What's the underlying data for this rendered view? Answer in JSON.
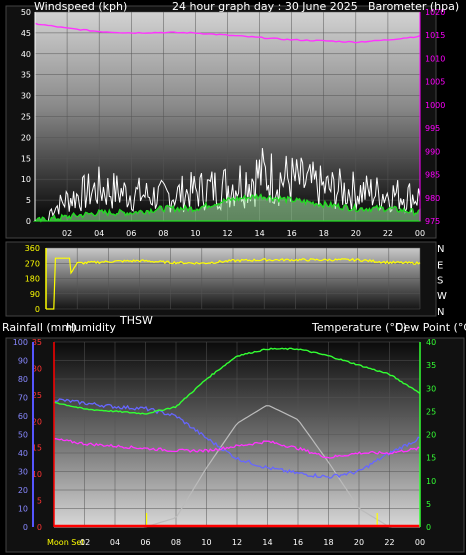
{
  "header": {
    "left": "Windspeed (kph)",
    "center": "24 hour graph day : 30 June 2025",
    "right": "Barometer (hpa)"
  },
  "panel1": {
    "left_ticks": [
      "0",
      "5",
      "10",
      "15",
      "20",
      "25",
      "30",
      "35",
      "40",
      "45",
      "50"
    ],
    "right_ticks": [
      "975",
      "980",
      "985",
      "990",
      "995",
      "1000",
      "1005",
      "1010",
      "1015",
      "1020"
    ],
    "x_ticks": [
      "02",
      "04",
      "06",
      "08",
      "10",
      "12",
      "14",
      "16",
      "18",
      "20",
      "22",
      "00"
    ]
  },
  "panel2": {
    "left_ticks": [
      "0",
      "90",
      "180",
      "270",
      "360"
    ],
    "right_labels": [
      "N",
      "W",
      "S",
      "E",
      "N"
    ],
    "caption": "THSW"
  },
  "panel3": {
    "label_left": "Rainfall (mm)",
    "label_humidity": "Humidity",
    "label_temp": "Temperature (°C)",
    "label_dew": "Dew Point (°C)",
    "hum_ticks": [
      "0",
      "10",
      "20",
      "30",
      "40",
      "50",
      "60",
      "70",
      "80",
      "90",
      "100"
    ],
    "rain_ticks": [
      "0",
      "5",
      "10",
      "15",
      "20",
      "25",
      "30",
      "35"
    ],
    "temp_ticks": [
      "0",
      "5",
      "10",
      "15",
      "20",
      "25",
      "30",
      "35",
      "40"
    ],
    "x_ticks": [
      "02",
      "04",
      "06",
      "08",
      "10",
      "12",
      "14",
      "16",
      "18",
      "20",
      "22",
      "00"
    ],
    "moon_label": "Moon Set"
  },
  "colors": {
    "barometer": "#ff33ff",
    "gust": "#ffffff",
    "wind_avg": "#22dd22",
    "wind_dir": "#ffff00",
    "temperature": "#33ff33",
    "humidity": "#6666ff",
    "dew_point": "#ff33ff",
    "rain": "#ff0000",
    "solar": "#bbbbbb",
    "grid": "#555555",
    "axis_left": "#ffffff",
    "axis_right": "#ff00ff"
  },
  "chart_data": [
    {
      "type": "line",
      "title": "24 hour graph day : 30 June 2025",
      "x": [
        "00",
        "02",
        "04",
        "06",
        "08",
        "10",
        "12",
        "14",
        "16",
        "18",
        "20",
        "22",
        "00"
      ],
      "ylabel": "Windspeed (kph)",
      "ylim": [
        0,
        50
      ],
      "y2label": "Barometer (hpa)",
      "y2lim": [
        975,
        1020
      ],
      "series": [
        {
          "name": "Barometer (hpa)",
          "axis": "right",
          "values": [
            1017.5,
            1016.5,
            1015.8,
            1015.5,
            1015.6,
            1015.5,
            1015.0,
            1014.5,
            1014.0,
            1013.8,
            1013.5,
            1014.0,
            1014.8
          ]
        },
        {
          "axis": "left",
          "values": [
            0,
            8,
            12,
            10,
            9,
            11,
            13,
            17,
            15,
            12,
            11,
            10,
            9
          ]
        },
        {
          "axis": "left",
          "values": [
            0,
            1,
            2,
            2,
            3,
            3,
            5,
            6,
            5,
            4,
            3,
            3,
            2
          ]
        }
      ]
    },
    {
      "type": "line",
      "x": [
        "00",
        "02",
        "04",
        "06",
        "08",
        "10",
        "12",
        "14",
        "16",
        "18",
        "20",
        "22",
        "00"
      ],
      "ylim": [
        0,
        360
      ],
      "series": [
        {
          "axis": "left",
          "values": [
            0,
            270,
            280,
            285,
            275,
            270,
            285,
            290,
            290,
            290,
            290,
            275,
            270
          ]
        }
      ]
    },
    {
      "type": "line",
      "x": [
        "00",
        "02",
        "04",
        "06",
        "08",
        "10",
        "12",
        "14",
        "16",
        "18",
        "20",
        "22",
        "00"
      ],
      "ylabel": "Humidity",
      "ylim": [
        0,
        100
      ],
      "y2label": "Temperature (°C)",
      "y2lim": [
        0,
        40
      ],
      "series": [
        {
          "name": "Temperature (°C)",
          "axis": "right",
          "values": [
            27,
            25.5,
            25,
            24.5,
            26,
            32,
            37,
            38.5,
            38.5,
            37,
            35,
            33,
            29
          ]
        },
        {
          "name": "Humidity",
          "axis": "left",
          "values": [
            69,
            67,
            65,
            64,
            60,
            48,
            37,
            32,
            29,
            27,
            30,
            40,
            48
          ]
        },
        {
          "name": "Dew Point (°C)",
          "axis": "right",
          "values": [
            19,
            18,
            17.5,
            17,
            16.5,
            16.5,
            17.5,
            18.5,
            17,
            15,
            16,
            16,
            17
          ]
        },
        {
          "name": "Rainfall (mm)",
          "axis": "rain",
          "values": [
            0,
            0,
            0,
            0,
            0,
            0,
            0,
            0,
            0,
            0,
            0,
            0,
            0
          ]
        },
        {
          "axis": "left",
          "values": [
            0,
            0,
            0,
            0,
            5,
            32,
            56,
            66,
            58,
            35,
            10,
            0,
            0
          ]
        }
      ]
    }
  ]
}
